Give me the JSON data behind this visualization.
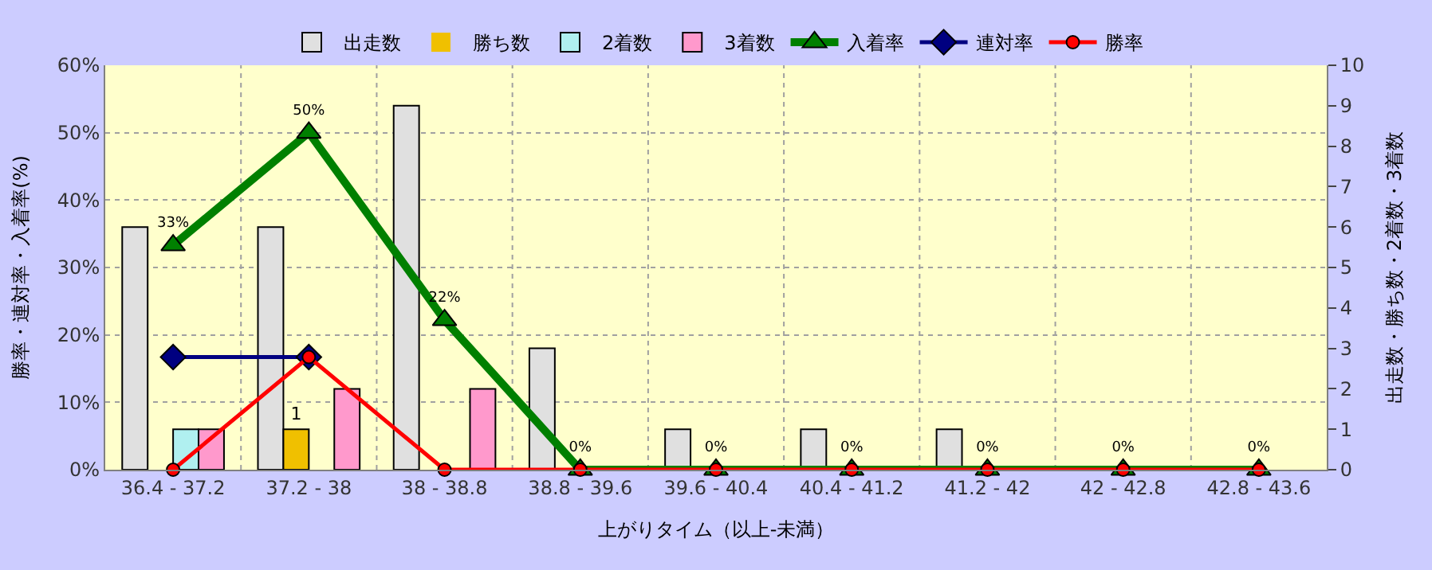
{
  "chart_data": {
    "type": "bar",
    "xlabel": "上がりタイム（以上-未満）",
    "ylabel": "勝率・連対率・入着率(%)",
    "y2label": "出走数・勝ち数・2着数・3着数",
    "categories": [
      "36.4 - 37.2",
      "37.2 - 38",
      "38 - 38.8",
      "38.8 - 39.6",
      "39.6 - 40.4",
      "40.4 - 41.2",
      "41.2 - 42",
      "42 - 42.8",
      "42.8 - 43.6"
    ],
    "series": [
      {
        "name": "出走数",
        "axis": "y2",
        "color": "#e0e0e0",
        "values": [
          6,
          6,
          9,
          3,
          1,
          1,
          1,
          0,
          0
        ]
      },
      {
        "name": "勝ち数",
        "axis": "y2",
        "color": "#f0c000",
        "values": [
          0,
          1,
          0,
          0,
          0,
          0,
          0,
          0,
          0
        ],
        "value_labels": [
          null,
          "1",
          null,
          null,
          null,
          null,
          null,
          null,
          null
        ]
      },
      {
        "name": "2着数",
        "axis": "y2",
        "color": "#b0f0f0",
        "values": [
          1,
          0,
          0,
          0,
          0,
          0,
          0,
          0,
          0
        ]
      },
      {
        "name": "3着数",
        "axis": "y2",
        "color": "#ff99cc",
        "values": [
          1,
          2,
          2,
          0,
          0,
          0,
          0,
          0,
          0
        ]
      },
      {
        "name": "入着率",
        "type": "line",
        "axis": "y",
        "color": "#008000",
        "marker": "triangle",
        "values": [
          33.3,
          50,
          22.2,
          0,
          0,
          0,
          0,
          0,
          0
        ],
        "value_labels": [
          "33%",
          "50%",
          "22%",
          "0%",
          "0%",
          "0%",
          "0%",
          "0%",
          "0%"
        ]
      },
      {
        "name": "連対率",
        "type": "line",
        "axis": "y",
        "color": "#000080",
        "marker": "diamond",
        "values": [
          16.7,
          16.7,
          null,
          null,
          null,
          null,
          null,
          null,
          null
        ]
      },
      {
        "name": "勝率",
        "type": "line",
        "axis": "y",
        "color": "#ff0000",
        "marker": "circle",
        "values": [
          0,
          16.7,
          0,
          0,
          0,
          0,
          0,
          0,
          0
        ]
      }
    ],
    "ylim": [
      0,
      60
    ],
    "yticks": [
      {
        "value": 0,
        "label": "0%"
      },
      {
        "value": 10,
        "label": "10%"
      },
      {
        "value": 20,
        "label": "20%"
      },
      {
        "value": 30,
        "label": "30%"
      },
      {
        "value": 40,
        "label": "40%"
      },
      {
        "value": 50,
        "label": "50%"
      },
      {
        "value": 60,
        "label": "60%"
      }
    ],
    "y2lim": [
      0,
      10
    ],
    "y2ticks": [
      0,
      1,
      2,
      3,
      4,
      5,
      6,
      7,
      8,
      9,
      10
    ],
    "grid": true,
    "legend": "top"
  }
}
